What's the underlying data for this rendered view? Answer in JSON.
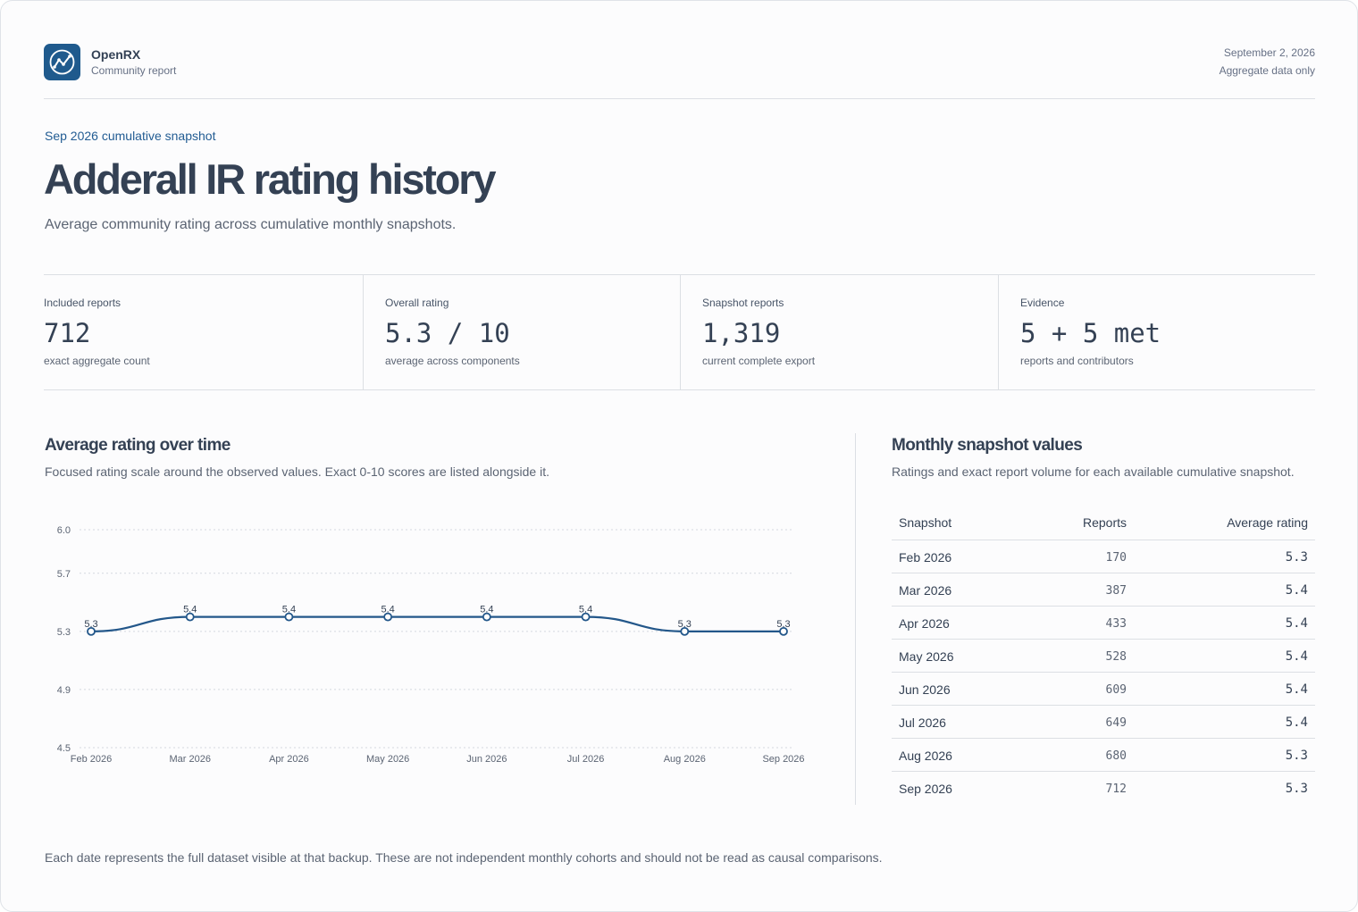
{
  "header": {
    "brand_name": "OpenRX",
    "brand_sub": "Community report",
    "date": "September 2, 2026",
    "note": "Aggregate data only",
    "logo_icon": "trend-line-icon"
  },
  "hero": {
    "eyebrow": "Sep 2026 cumulative snapshot",
    "title": "Adderall IR rating history",
    "subtitle": "Average community rating across cumulative monthly snapshots."
  },
  "stats": [
    {
      "label": "Included reports",
      "value": "712",
      "note": "exact aggregate count"
    },
    {
      "label": "Overall rating",
      "value": "5.3 / 10",
      "note": "average across components"
    },
    {
      "label": "Snapshot reports",
      "value": "1,319",
      "note": "current complete export"
    },
    {
      "label": "Evidence",
      "value": "5 + 5 met",
      "note": "reports and contributors"
    }
  ],
  "chart_section": {
    "title": "Average rating over time",
    "description": "Focused rating scale around the observed values. Exact 0-10 scores are listed alongside it."
  },
  "chart_data": {
    "type": "line",
    "title": "",
    "xlabel": "",
    "ylabel": "",
    "categories": [
      "Feb 2026",
      "Mar 2026",
      "Apr 2026",
      "May 2026",
      "Jun 2026",
      "Jul 2026",
      "Aug 2026",
      "Sep 2026"
    ],
    "values": [
      5.3,
      5.4,
      5.4,
      5.4,
      5.4,
      5.4,
      5.3,
      5.3
    ],
    "data_labels": [
      "5.3",
      "5.4",
      "5.4",
      "5.4",
      "5.4",
      "5.4",
      "5.3",
      "5.3"
    ],
    "yticks": [
      "6.0",
      "5.7",
      "5.3",
      "4.9",
      "4.5"
    ],
    "ylim": [
      4.5,
      6.0
    ],
    "grid": true,
    "line_color": "#23578a"
  },
  "table_section": {
    "title": "Monthly snapshot values",
    "description": "Ratings and exact report volume for each available cumulative snapshot.",
    "headers": {
      "snapshot": "Snapshot",
      "reports": "Reports",
      "rating": "Average rating"
    },
    "rows": [
      {
        "snapshot": "Feb 2026",
        "reports": "170",
        "rating": "5.3"
      },
      {
        "snapshot": "Mar 2026",
        "reports": "387",
        "rating": "5.4"
      },
      {
        "snapshot": "Apr 2026",
        "reports": "433",
        "rating": "5.4"
      },
      {
        "snapshot": "May 2026",
        "reports": "528",
        "rating": "5.4"
      },
      {
        "snapshot": "Jun 2026",
        "reports": "609",
        "rating": "5.4"
      },
      {
        "snapshot": "Jul 2026",
        "reports": "649",
        "rating": "5.4"
      },
      {
        "snapshot": "Aug 2026",
        "reports": "680",
        "rating": "5.3"
      },
      {
        "snapshot": "Sep 2026",
        "reports": "712",
        "rating": "5.3"
      }
    ]
  },
  "footnote": "Each date represents the full dataset visible at that backup. These are not independent monthly cohorts and should not be read as causal comparisons.",
  "colors": {
    "accent": "#225c93",
    "text": "#344154",
    "muted": "#5b6473",
    "border": "#dcdfe4"
  }
}
